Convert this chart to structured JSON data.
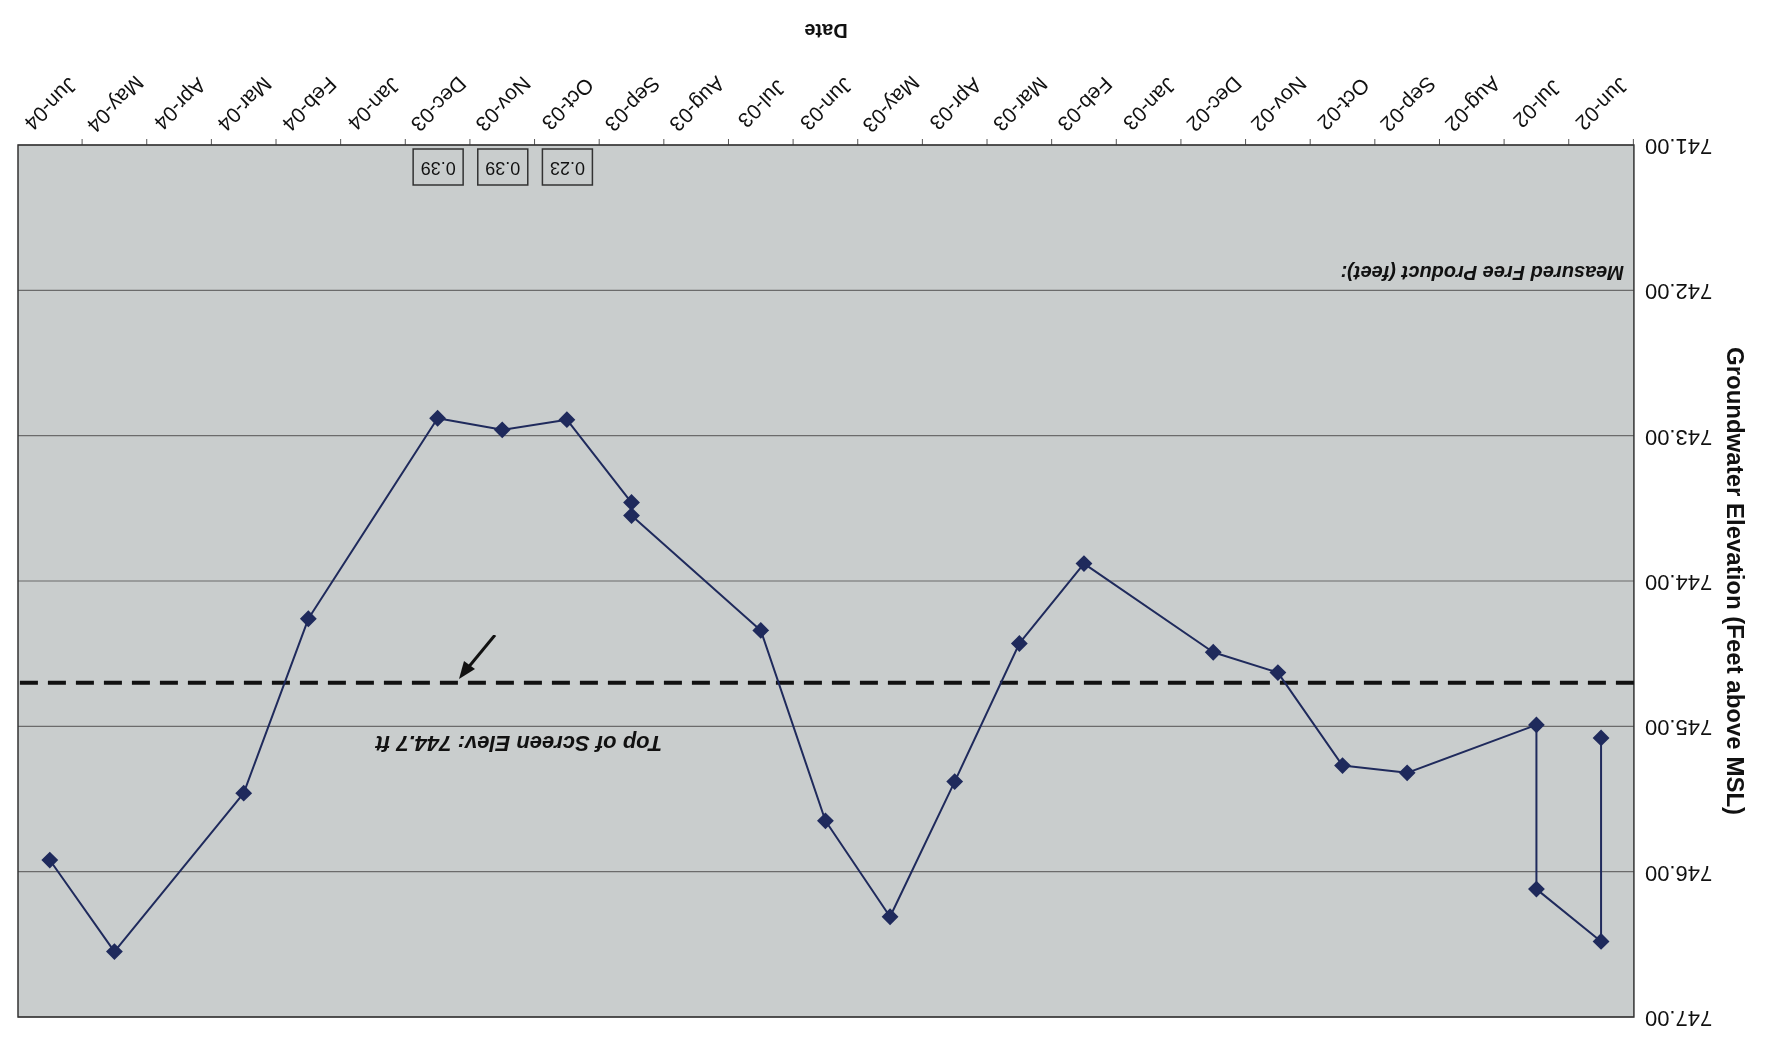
{
  "chart_data": {
    "type": "line",
    "xlabel": "Date",
    "ylabel": "Groundwater Elevation (Feet above MSL)",
    "x": [
      "2002-06",
      "2002-06",
      "2002-07",
      "2002-07",
      "2002-09",
      "2002-10",
      "2002-11",
      "2002-12",
      "2003-02",
      "2003-03",
      "2003-04",
      "2003-05",
      "2003-06",
      "2003-07",
      "2003-09",
      "2003-09",
      "2003-10",
      "2003-11",
      "2003-12",
      "2004-02",
      "2004-03",
      "2004-05",
      "2004-06"
    ],
    "series": [
      {
        "color": "#1f2a5c",
        "values": [
          745.08,
          746.48,
          746.12,
          744.99,
          745.32,
          745.27,
          744.63,
          744.49,
          743.88,
          744.43,
          745.38,
          746.31,
          745.65,
          744.34,
          743.55,
          743.46,
          742.89,
          742.96,
          742.88,
          744.26,
          745.46,
          746.55,
          745.92
        ]
      }
    ],
    "marker": "diamond",
    "line_style": "solid",
    "grid": "y",
    "legend": false,
    "xlim": [
      "2004-06-16",
      "2002-05-16"
    ],
    "xticks": [
      {
        "value": "2002-06",
        "label": "Jun-02"
      },
      {
        "value": "2002-07",
        "label": "Jul-02"
      },
      {
        "value": "2002-08",
        "label": "Aug-02"
      },
      {
        "value": "2002-09",
        "label": "Sep-02"
      },
      {
        "value": "2002-10",
        "label": "Oct-02"
      },
      {
        "value": "2002-11",
        "label": "Nov-02"
      },
      {
        "value": "2002-12",
        "label": "Dec-02"
      },
      {
        "value": "2003-01",
        "label": "Jan-03"
      },
      {
        "value": "2003-02",
        "label": "Feb-03"
      },
      {
        "value": "2003-03",
        "label": "Mar-03"
      },
      {
        "value": "2003-04",
        "label": "Apr-03"
      },
      {
        "value": "2003-05",
        "label": "May-03"
      },
      {
        "value": "2003-06",
        "label": "Jun-03"
      },
      {
        "value": "2003-07",
        "label": "Jul-03"
      },
      {
        "value": "2003-08",
        "label": "Aug-03"
      },
      {
        "value": "2003-09",
        "label": "Sep-03"
      },
      {
        "value": "2003-10",
        "label": "Oct-03"
      },
      {
        "value": "2003-11",
        "label": "Nov-03"
      },
      {
        "value": "2003-12",
        "label": "Dec-03"
      },
      {
        "value": "2004-01",
        "label": "Jan-04"
      },
      {
        "value": "2004-02",
        "label": "Feb-04"
      },
      {
        "value": "2004-03",
        "label": "Mar-04"
      },
      {
        "value": "2004-04",
        "label": "Apr-04"
      },
      {
        "value": "2004-05",
        "label": "May-04"
      },
      {
        "value": "2004-06",
        "label": "Jun-04"
      }
    ],
    "ylim": [
      747,
      741
    ],
    "yticks": [
      {
        "value": 741,
        "label": "741.00"
      },
      {
        "value": 742,
        "label": "742.00"
      },
      {
        "value": 743,
        "label": "743.00"
      },
      {
        "value": 744,
        "label": "744.00"
      },
      {
        "value": 745,
        "label": "745.00"
      },
      {
        "value": 746,
        "label": "746.00"
      },
      {
        "value": 747,
        "label": "747.00"
      }
    ],
    "ref_lines": [
      {
        "axis": "y",
        "value": 744.7,
        "label": "Top of Screen Elev: 744.7 ft",
        "color": "#111111",
        "line_style": "dashed"
      }
    ],
    "annotations": [
      "Measured Free Product (feet):",
      "0.23",
      "0.39",
      "0.39"
    ]
  }
}
